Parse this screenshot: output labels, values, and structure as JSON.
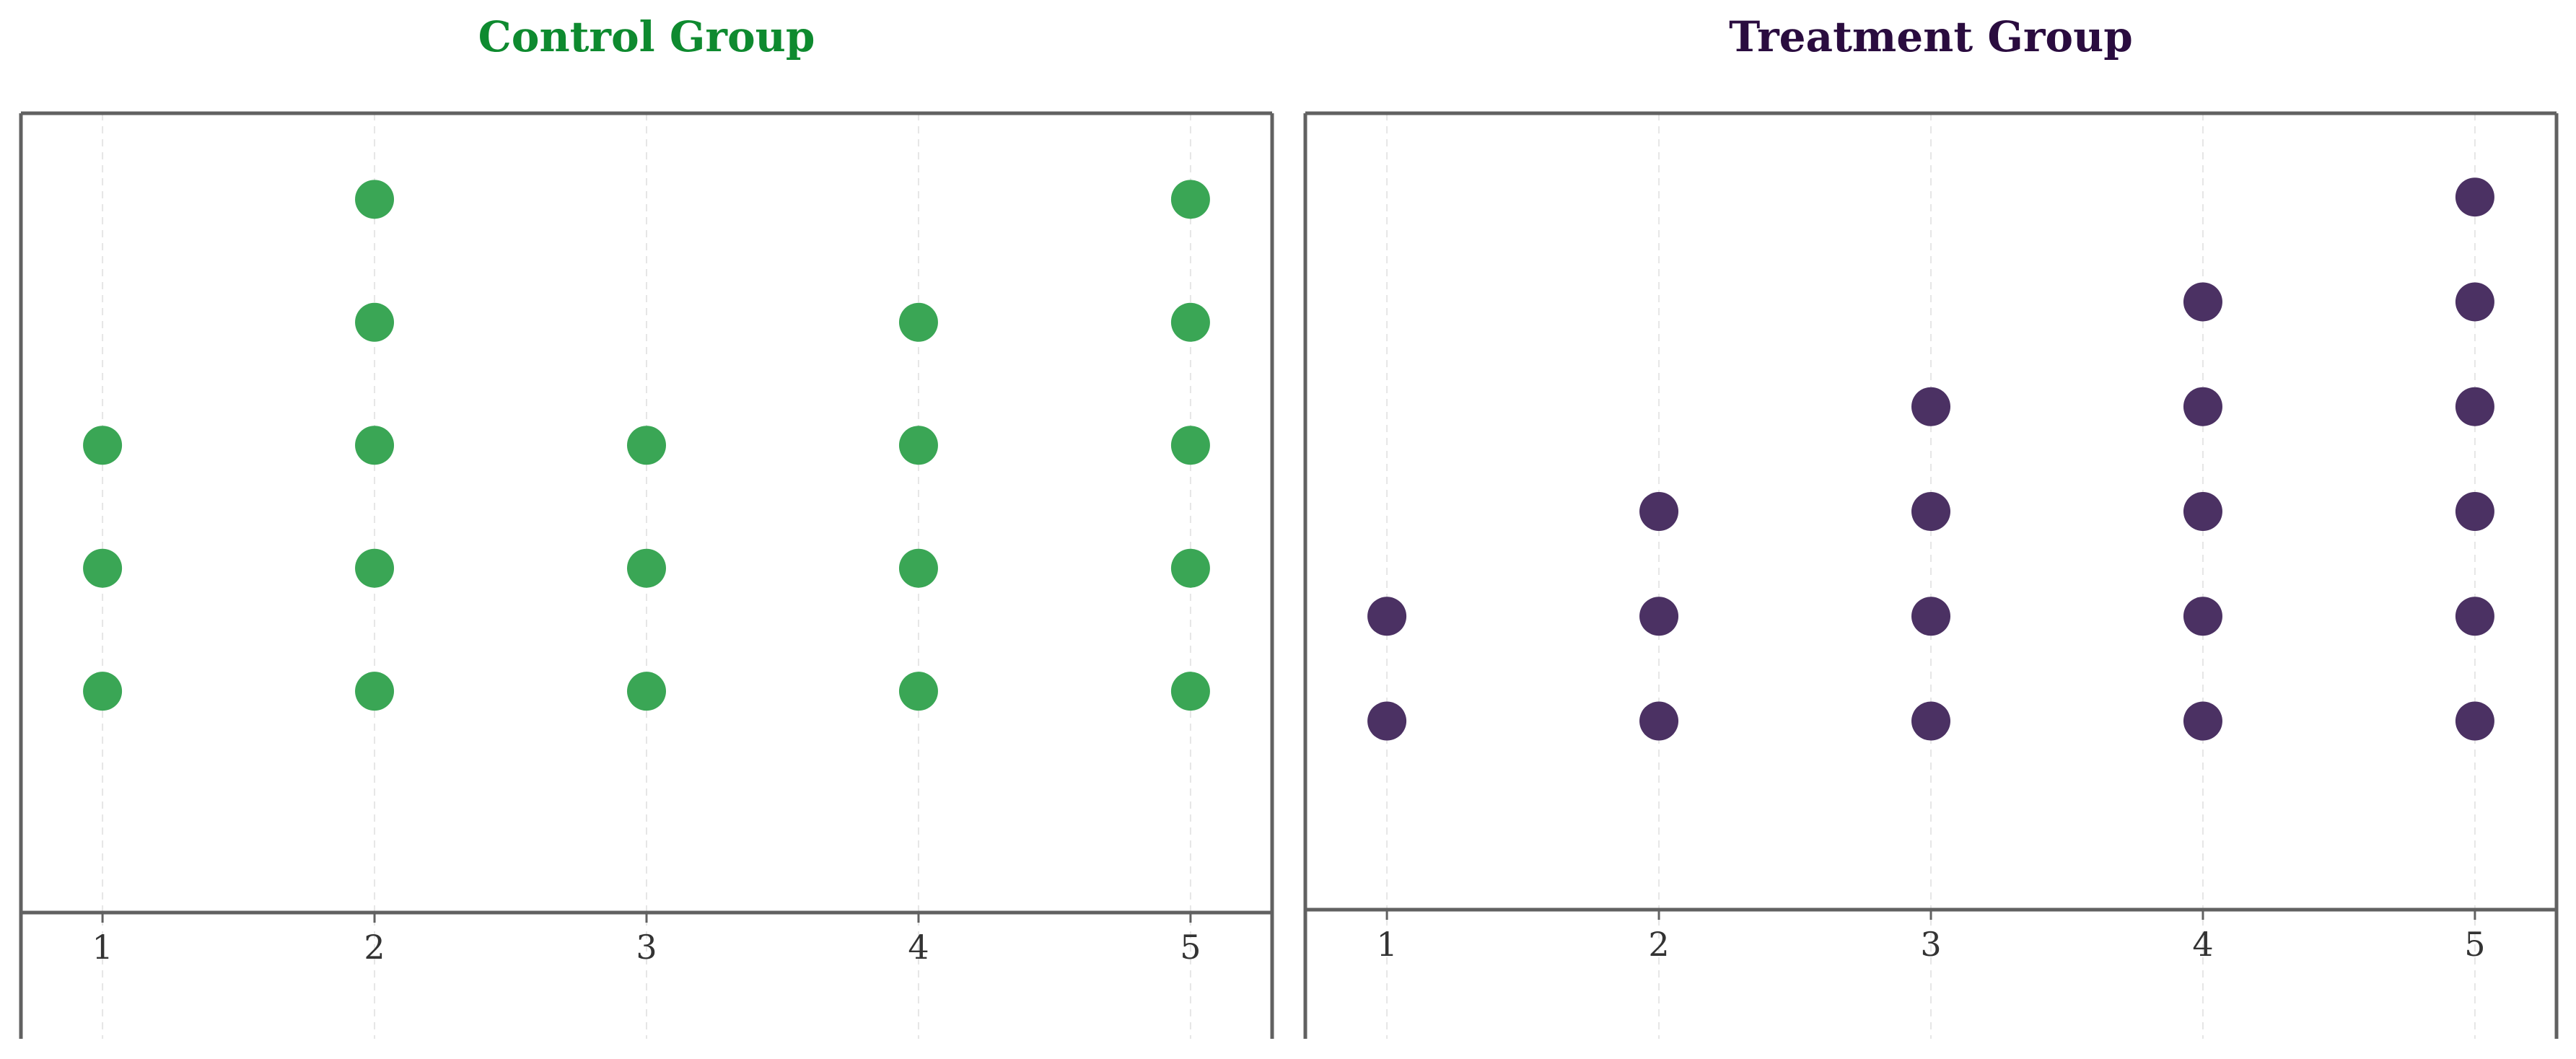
{
  "chart_data": [
    {
      "type": "scatter",
      "style": "dot-plot",
      "title": "Control Group",
      "title_color": "#0e8a2f",
      "marker_color": "#3aa655",
      "xlabel": "",
      "ylabel": "",
      "xticks": [
        "1",
        "2",
        "3",
        "4",
        "5"
      ],
      "xlim": [
        0.7,
        5.3
      ],
      "ylim": [
        -0.8,
        5.7
      ],
      "grid": "vertical dashed",
      "categories": [
        1,
        2,
        3,
        4,
        5
      ],
      "counts": [
        3,
        5,
        3,
        4,
        5
      ],
      "points": [
        {
          "x": 1,
          "y": 1
        },
        {
          "x": 1,
          "y": 2
        },
        {
          "x": 1,
          "y": 3
        },
        {
          "x": 2,
          "y": 1
        },
        {
          "x": 2,
          "y": 2
        },
        {
          "x": 2,
          "y": 3
        },
        {
          "x": 2,
          "y": 4
        },
        {
          "x": 2,
          "y": 5
        },
        {
          "x": 3,
          "y": 1
        },
        {
          "x": 3,
          "y": 2
        },
        {
          "x": 3,
          "y": 3
        },
        {
          "x": 4,
          "y": 1
        },
        {
          "x": 4,
          "y": 2
        },
        {
          "x": 4,
          "y": 3
        },
        {
          "x": 4,
          "y": 4
        },
        {
          "x": 5,
          "y": 1
        },
        {
          "x": 5,
          "y": 2
        },
        {
          "x": 5,
          "y": 3
        },
        {
          "x": 5,
          "y": 4
        },
        {
          "x": 5,
          "y": 5
        }
      ]
    },
    {
      "type": "scatter",
      "style": "dot-plot",
      "title": "Treatment Group",
      "title_color": "#2a0c3f",
      "marker_color": "#4b3163",
      "xlabel": "",
      "ylabel": "",
      "xticks": [
        "1",
        "2",
        "3",
        "4",
        "5"
      ],
      "xlim": [
        0.7,
        5.3
      ],
      "ylim": [
        -0.8,
        6.8
      ],
      "grid": "vertical dashed",
      "categories": [
        1,
        2,
        3,
        4,
        5
      ],
      "counts": [
        2,
        3,
        4,
        5,
        6
      ],
      "points": [
        {
          "x": 1,
          "y": 1
        },
        {
          "x": 1,
          "y": 2
        },
        {
          "x": 2,
          "y": 1
        },
        {
          "x": 2,
          "y": 2
        },
        {
          "x": 2,
          "y": 3
        },
        {
          "x": 3,
          "y": 1
        },
        {
          "x": 3,
          "y": 2
        },
        {
          "x": 3,
          "y": 3
        },
        {
          "x": 3,
          "y": 4
        },
        {
          "x": 4,
          "y": 1
        },
        {
          "x": 4,
          "y": 2
        },
        {
          "x": 4,
          "y": 3
        },
        {
          "x": 4,
          "y": 4
        },
        {
          "x": 4,
          "y": 5
        },
        {
          "x": 5,
          "y": 1
        },
        {
          "x": 5,
          "y": 2
        },
        {
          "x": 5,
          "y": 3
        },
        {
          "x": 5,
          "y": 4
        },
        {
          "x": 5,
          "y": 5
        },
        {
          "x": 5,
          "y": 6
        }
      ]
    }
  ]
}
